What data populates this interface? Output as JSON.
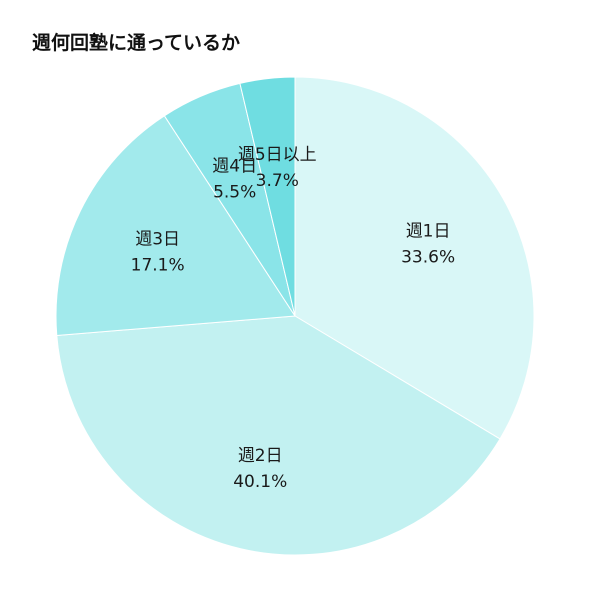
{
  "chart_data": {
    "type": "pie",
    "title": "週何回塾に通っているか",
    "categories": [
      "週1日",
      "週2日",
      "週3日",
      "週4日",
      "週5日以上"
    ],
    "values": [
      33.6,
      40.1,
      17.1,
      5.5,
      3.7
    ],
    "value_labels": [
      "33.6%",
      "40.1%",
      "17.1%",
      "5.5%",
      "3.7%"
    ],
    "colors": [
      "#d9f7f7",
      "#c2f1f1",
      "#a2eaec",
      "#8ae4e8",
      "#6fdde1"
    ],
    "legend": "none",
    "start": "top, clockwise"
  }
}
